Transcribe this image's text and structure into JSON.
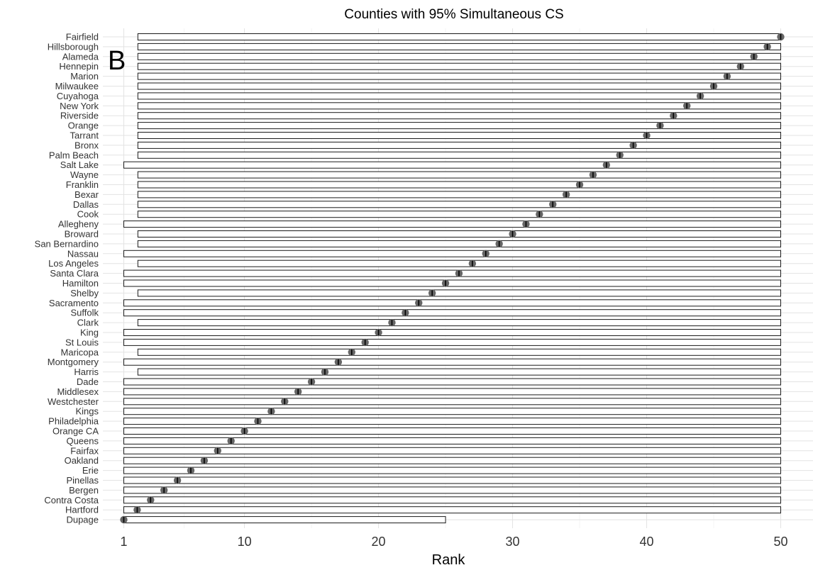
{
  "chart_data": {
    "type": "interval",
    "title": "Counties with 95% Simultaneous CS",
    "panel_label": "B",
    "xlabel": "Rank",
    "ylabel": "",
    "xlim": [
      0.2,
      51
    ],
    "x_ticks": [
      1,
      10,
      20,
      30,
      40,
      50
    ],
    "grid": true,
    "legend": "none",
    "colors": {
      "point": "#666666",
      "interval_stroke": "#1a1a1a",
      "interval_fill": "#ffffff",
      "grid": "#e3e3e3"
    },
    "counties": [
      {
        "name": "Fairfield",
        "rank": 50,
        "lower": 2,
        "upper": 50
      },
      {
        "name": "Hillsborough",
        "rank": 49,
        "lower": 2,
        "upper": 50
      },
      {
        "name": "Alameda",
        "rank": 48,
        "lower": 2,
        "upper": 50
      },
      {
        "name": "Hennepin",
        "rank": 47,
        "lower": 2,
        "upper": 50
      },
      {
        "name": "Marion",
        "rank": 46,
        "lower": 2,
        "upper": 50
      },
      {
        "name": "Milwaukee",
        "rank": 45,
        "lower": 2,
        "upper": 50
      },
      {
        "name": "Cuyahoga",
        "rank": 44,
        "lower": 2,
        "upper": 50
      },
      {
        "name": "New York",
        "rank": 43,
        "lower": 2,
        "upper": 50
      },
      {
        "name": "Riverside",
        "rank": 42,
        "lower": 2,
        "upper": 50
      },
      {
        "name": "Orange",
        "rank": 41,
        "lower": 2,
        "upper": 50
      },
      {
        "name": "Tarrant",
        "rank": 40,
        "lower": 2,
        "upper": 50
      },
      {
        "name": "Bronx",
        "rank": 39,
        "lower": 2,
        "upper": 50
      },
      {
        "name": "Palm Beach",
        "rank": 38,
        "lower": 2,
        "upper": 50
      },
      {
        "name": "Salt Lake",
        "rank": 37,
        "lower": 1,
        "upper": 50
      },
      {
        "name": "Wayne",
        "rank": 36,
        "lower": 2,
        "upper": 50
      },
      {
        "name": "Franklin",
        "rank": 35,
        "lower": 2,
        "upper": 50
      },
      {
        "name": "Bexar",
        "rank": 34,
        "lower": 2,
        "upper": 50
      },
      {
        "name": "Dallas",
        "rank": 33,
        "lower": 2,
        "upper": 50
      },
      {
        "name": "Cook",
        "rank": 32,
        "lower": 2,
        "upper": 50
      },
      {
        "name": "Allegheny",
        "rank": 31,
        "lower": 1,
        "upper": 50
      },
      {
        "name": "Broward",
        "rank": 30,
        "lower": 2,
        "upper": 50
      },
      {
        "name": "San Bernardino",
        "rank": 29,
        "lower": 2,
        "upper": 50
      },
      {
        "name": "Nassau",
        "rank": 28,
        "lower": 1,
        "upper": 50
      },
      {
        "name": "Los Angeles",
        "rank": 27,
        "lower": 2,
        "upper": 50
      },
      {
        "name": "Santa Clara",
        "rank": 26,
        "lower": 1,
        "upper": 50
      },
      {
        "name": "Hamilton",
        "rank": 25,
        "lower": 1,
        "upper": 50
      },
      {
        "name": "Shelby",
        "rank": 24,
        "lower": 2,
        "upper": 50
      },
      {
        "name": "Sacramento",
        "rank": 23,
        "lower": 1,
        "upper": 50
      },
      {
        "name": "Suffolk",
        "rank": 22,
        "lower": 1,
        "upper": 50
      },
      {
        "name": "Clark",
        "rank": 21,
        "lower": 2,
        "upper": 50
      },
      {
        "name": "King",
        "rank": 20,
        "lower": 1,
        "upper": 50
      },
      {
        "name": "St Louis",
        "rank": 19,
        "lower": 1,
        "upper": 50
      },
      {
        "name": "Maricopa",
        "rank": 18,
        "lower": 2,
        "upper": 50
      },
      {
        "name": "Montgomery",
        "rank": 17,
        "lower": 1,
        "upper": 50
      },
      {
        "name": "Harris",
        "rank": 16,
        "lower": 2,
        "upper": 50
      },
      {
        "name": "Dade",
        "rank": 15,
        "lower": 1,
        "upper": 50
      },
      {
        "name": "Middlesex",
        "rank": 14,
        "lower": 1,
        "upper": 50
      },
      {
        "name": "Westchester",
        "rank": 13,
        "lower": 1,
        "upper": 50
      },
      {
        "name": "Kings",
        "rank": 12,
        "lower": 1,
        "upper": 50
      },
      {
        "name": "Philadelphia",
        "rank": 11,
        "lower": 1,
        "upper": 50
      },
      {
        "name": "Orange CA",
        "rank": 10,
        "lower": 1,
        "upper": 50
      },
      {
        "name": "Queens",
        "rank": 9,
        "lower": 1,
        "upper": 50
      },
      {
        "name": "Fairfax",
        "rank": 8,
        "lower": 1,
        "upper": 50
      },
      {
        "name": "Oakland",
        "rank": 7,
        "lower": 1,
        "upper": 50
      },
      {
        "name": "Erie",
        "rank": 6,
        "lower": 1,
        "upper": 50
      },
      {
        "name": "Pinellas",
        "rank": 5,
        "lower": 1,
        "upper": 50
      },
      {
        "name": "Bergen",
        "rank": 4,
        "lower": 1,
        "upper": 50
      },
      {
        "name": "Contra Costa",
        "rank": 3,
        "lower": 1,
        "upper": 50
      },
      {
        "name": "Hartford",
        "rank": 2,
        "lower": 1,
        "upper": 50
      },
      {
        "name": "Dupage",
        "rank": 1,
        "lower": 1,
        "upper": 25
      }
    ]
  }
}
